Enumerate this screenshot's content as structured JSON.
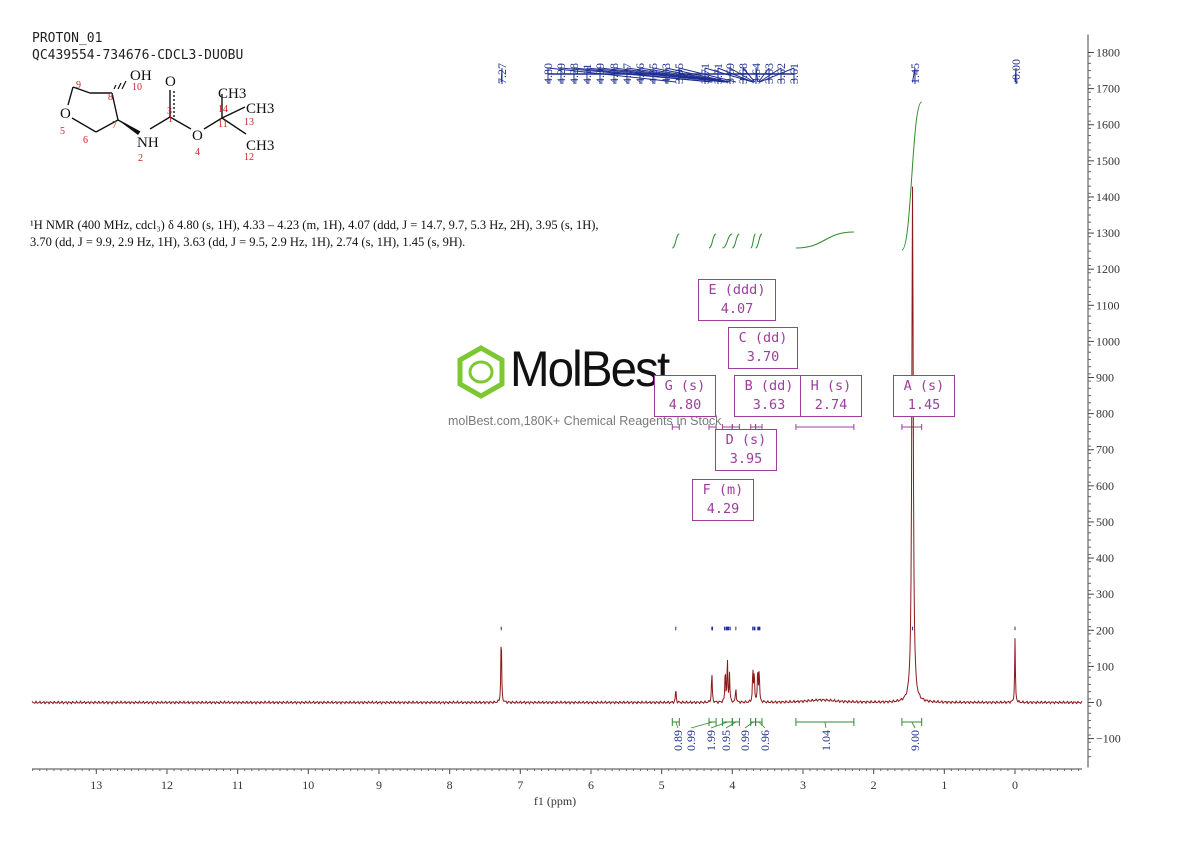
{
  "header": {
    "line1": "PROTON_01",
    "line2": "QC439554-734676-CDCL3-DUOBU"
  },
  "nmr_description": "¹H NMR (400 MHz, cdcl₃) δ 4.80 (s, 1H), 4.33 – 4.23 (m, 1H), 4.07 (ddd, J = 14.7, 9.7, 5.3 Hz, 2H), 3.95 (s, 1H), 3.70 (dd, J = 9.9, 2.9 Hz, 1H), 3.63 (dd, J = 9.5, 2.9 Hz, 1H), 2.74 (s, 1H), 1.45 (s, 9H).",
  "watermark": {
    "logo": "MolBest",
    "tagline": "molBest.com,180K+ Chemical Reagents In Stock"
  },
  "structure": {
    "atoms": [
      "OH",
      "O",
      "O",
      "NH",
      "O",
      "CH3",
      "CH3",
      "CH3"
    ],
    "numbers": [
      "1",
      "2",
      "3",
      "4",
      "5",
      "6",
      "7",
      "8",
      "9",
      "10",
      "11",
      "12",
      "13",
      "14"
    ]
  },
  "colors": {
    "spectrum": "#8b1a1a",
    "peak_labels": "#1f2f8f",
    "integral": "#2e8b2e",
    "multiplet_box": "#9b3f9b"
  },
  "chart_data": {
    "type": "line",
    "xlabel": "f1 (ppm)",
    "ylabel": "",
    "xlim": [
      14.0,
      -1.0
    ],
    "ylim": [
      -180,
      1850
    ],
    "x_ticks": [
      "13",
      "12",
      "11",
      "10",
      "9",
      "8",
      "7",
      "6",
      "5",
      "4",
      "3",
      "2",
      "1",
      "0"
    ],
    "y_ticks": [
      "1800",
      "1700",
      "1600",
      "1500",
      "1400",
      "1300",
      "1200",
      "1100",
      "1000",
      "900",
      "800",
      "700",
      "600",
      "500",
      "400",
      "300",
      "200",
      "100",
      "0",
      "-100"
    ],
    "peaks": [
      {
        "ppm": 7.27,
        "height": 200
      },
      {
        "ppm": 4.8,
        "height": 38
      },
      {
        "ppm": 4.29,
        "height": 88
      },
      {
        "ppm": 4.1,
        "height": 95
      },
      {
        "ppm": 4.07,
        "height": 118
      },
      {
        "ppm": 4.04,
        "height": 80
      },
      {
        "ppm": 3.95,
        "height": 42
      },
      {
        "ppm": 3.71,
        "height": 92
      },
      {
        "ppm": 3.69,
        "height": 88
      },
      {
        "ppm": 3.64,
        "height": 95
      },
      {
        "ppm": 3.62,
        "height": 90
      },
      {
        "ppm": 2.74,
        "height": 7
      },
      {
        "ppm": 1.45,
        "height": 1430
      },
      {
        "ppm": 0.0,
        "height": 175
      }
    ],
    "peak_labels": [
      "7.27",
      "4.80",
      "4.29",
      "4.28",
      "4.11",
      "4.09",
      "4.08",
      "4.07",
      "4.06",
      "4.05",
      "4.03",
      "3.95",
      "3.71",
      "3.71",
      "3.69",
      "3.68",
      "3.64",
      "3.63",
      "3.62",
      "3.61",
      "1.45",
      "-0.00"
    ],
    "multiplets": [
      {
        "label": "E (ddd)",
        "shift": "4.07"
      },
      {
        "label": "C (dd)",
        "shift": "3.70"
      },
      {
        "label": "G (s)",
        "shift": "4.80"
      },
      {
        "label": "B (dd)",
        "shift": "3.63"
      },
      {
        "label": "H (s)",
        "shift": "2.74"
      },
      {
        "label": "A (s)",
        "shift": "1.45"
      },
      {
        "label": "D (s)",
        "shift": "3.95"
      },
      {
        "label": "F (m)",
        "shift": "4.29"
      }
    ],
    "integrals": [
      {
        "from": 4.85,
        "to": 4.75,
        "value": "0.89"
      },
      {
        "from": 4.33,
        "to": 4.23,
        "value": "0.99"
      },
      {
        "from": 4.14,
        "to": 4.0,
        "value": "1.99"
      },
      {
        "from": 4.0,
        "to": 3.9,
        "value": "0.95"
      },
      {
        "from": 3.74,
        "to": 3.67,
        "value": "0.99"
      },
      {
        "from": 3.67,
        "to": 3.58,
        "value": "0.96"
      },
      {
        "from": 3.1,
        "to": 2.28,
        "value": "1.04"
      },
      {
        "from": 1.6,
        "to": 1.32,
        "value": "9.00"
      }
    ]
  }
}
